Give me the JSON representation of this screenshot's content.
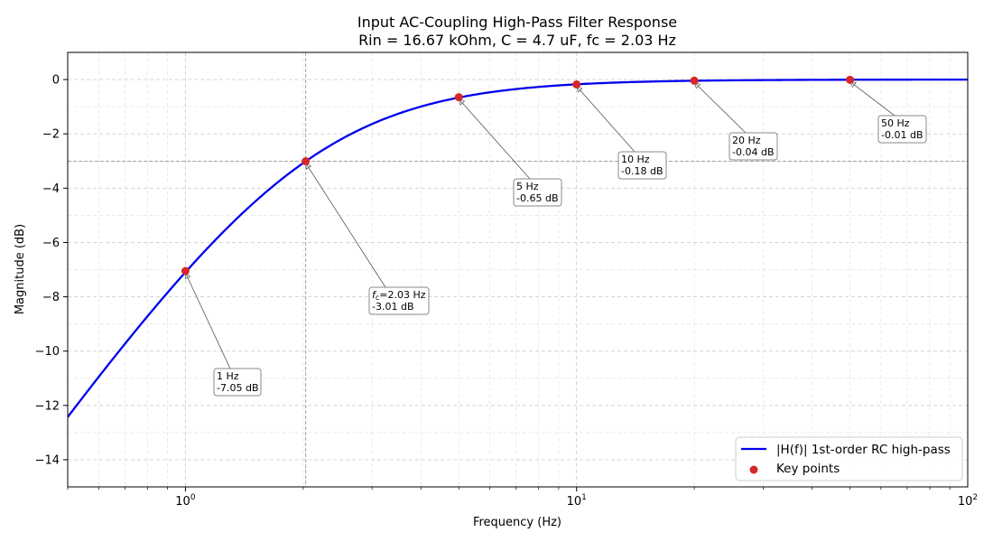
{
  "chart_data": {
    "type": "line",
    "title": "Input AC-Coupling High-Pass Filter Response",
    "subtitle": "Rin = 16.67 kOhm, C = 4.7 uF, fc = 2.03 Hz",
    "xlabel": "Frequency (Hz)",
    "ylabel": "Magnitude (dB)",
    "xscale": "log",
    "xlim": [
      0.5,
      100
    ],
    "ylim": [
      -15,
      1
    ],
    "grid": true,
    "cutoff_hz": 2.03,
    "cutoff_db": -3.01,
    "x_ticks": [
      {
        "value": 1,
        "base": "10",
        "exp": "0"
      },
      {
        "value": 10,
        "base": "10",
        "exp": "1"
      },
      {
        "value": 100,
        "base": "10",
        "exp": "2"
      }
    ],
    "y_ticks": [
      "0",
      "−2",
      "−4",
      "−6",
      "−8",
      "−10",
      "−12",
      "−14"
    ],
    "series": [
      {
        "name": "|H(f)| 1st-order RC high-pass",
        "color": "#0000ee",
        "kind": "line"
      },
      {
        "name": "Key points",
        "color": "#d62728",
        "kind": "scatter",
        "points": [
          {
            "x": 1,
            "y": -7.05,
            "label_line1": "1 Hz",
            "label_line2": "-7.05 dB"
          },
          {
            "x": 2.03,
            "y": -3.01,
            "label_main": "f",
            "label_sub": "c",
            "label_rest": "=2.03 Hz",
            "label_line2": "-3.01 dB"
          },
          {
            "x": 5,
            "y": -0.65,
            "label_line1": "5 Hz",
            "label_line2": "-0.65 dB"
          },
          {
            "x": 10,
            "y": -0.18,
            "label_line1": "10 Hz",
            "label_line2": "-0.18 dB"
          },
          {
            "x": 20,
            "y": -0.04,
            "label_line1": "20 Hz",
            "label_line2": "-0.04 dB"
          },
          {
            "x": 50,
            "y": -0.01,
            "label_line1": "50 Hz",
            "label_line2": "-0.01 dB"
          }
        ]
      }
    ],
    "legend": {
      "placement": "lower-right"
    }
  }
}
